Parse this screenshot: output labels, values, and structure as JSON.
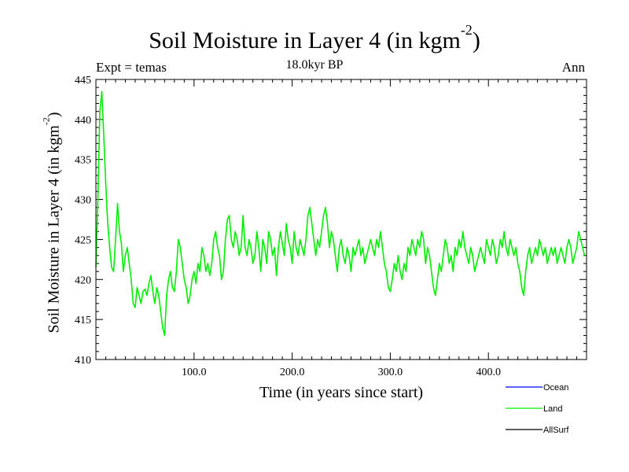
{
  "chart_data": {
    "type": "line",
    "title_main": "Soil Moisture in Layer 4 (in kgm",
    "title_sup": "-2",
    "title_close": ")",
    "subtitle": "18.0kyr BP",
    "left_label": "Expt = temas",
    "right_label": "Ann",
    "xlabel": "Time (in years since start)",
    "ylabel_main": "Soil Moisture in Layer 4 (in kgm",
    "ylabel_sup": "-2",
    "ylabel_close": ")",
    "xlim": [
      0,
      500
    ],
    "ylim": [
      410,
      445
    ],
    "x_ticks": [
      100,
      200,
      300,
      400
    ],
    "x_tick_labels": [
      "100.0",
      "200.0",
      "300.0",
      "400.0"
    ],
    "y_ticks": [
      410,
      415,
      420,
      425,
      430,
      435,
      440,
      445
    ],
    "y_tick_labels": [
      "410",
      "415",
      "420",
      "425",
      "430",
      "435",
      "440",
      "445"
    ],
    "legend": [
      {
        "name": "Ocean",
        "color": "#0000ff"
      },
      {
        "name": "Land",
        "color": "#00ee00"
      },
      {
        "name": "AllSurf",
        "color": "#000000"
      }
    ],
    "series": [
      {
        "name": "Land",
        "color": "#00ee00",
        "x": [
          0,
          2,
          4,
          6,
          8,
          10,
          12,
          14,
          16,
          18,
          20,
          22,
          24,
          26,
          28,
          30,
          32,
          34,
          36,
          38,
          40,
          42,
          44,
          46,
          48,
          50,
          52,
          54,
          56,
          58,
          60,
          62,
          64,
          66,
          68,
          70,
          72,
          74,
          76,
          78,
          80,
          82,
          84,
          86,
          88,
          90,
          92,
          94,
          96,
          98,
          100,
          102,
          104,
          106,
          108,
          110,
          112,
          114,
          116,
          118,
          120,
          122,
          124,
          126,
          128,
          130,
          132,
          134,
          136,
          138,
          140,
          142,
          144,
          146,
          148,
          150,
          152,
          154,
          156,
          158,
          160,
          162,
          164,
          166,
          168,
          170,
          172,
          174,
          176,
          178,
          180,
          182,
          184,
          186,
          188,
          190,
          192,
          194,
          196,
          198,
          200,
          202,
          204,
          206,
          208,
          210,
          212,
          214,
          216,
          218,
          220,
          222,
          224,
          226,
          228,
          230,
          232,
          234,
          236,
          238,
          240,
          242,
          244,
          246,
          248,
          250,
          252,
          254,
          256,
          258,
          260,
          262,
          264,
          266,
          268,
          270,
          272,
          274,
          276,
          278,
          280,
          282,
          284,
          286,
          288,
          290,
          292,
          294,
          296,
          298,
          300,
          302,
          304,
          306,
          308,
          310,
          312,
          314,
          316,
          318,
          320,
          322,
          324,
          326,
          328,
          330,
          332,
          334,
          336,
          338,
          340,
          342,
          344,
          346,
          348,
          350,
          352,
          354,
          356,
          358,
          360,
          362,
          364,
          366,
          368,
          370,
          372,
          374,
          376,
          378,
          380,
          382,
          384,
          386,
          388,
          390,
          392,
          394,
          396,
          398,
          400,
          402,
          404,
          406,
          408,
          410,
          412,
          414,
          416,
          418,
          420,
          422,
          424,
          426,
          428,
          430,
          432,
          434,
          436,
          438,
          440,
          442,
          444,
          446,
          448,
          450,
          452,
          454,
          456,
          458,
          460,
          462,
          464,
          466,
          468,
          470,
          472,
          474,
          476,
          478,
          480,
          482,
          484,
          486,
          488,
          490,
          492,
          494,
          496,
          498
        ],
        "y": [
          421.5,
          430,
          441,
          443.5,
          438,
          432,
          427,
          424,
          421.5,
          421,
          425,
          429.5,
          426,
          424.5,
          421,
          423,
          424,
          422,
          420,
          417,
          416.5,
          419,
          418,
          417,
          418.5,
          418.8,
          418,
          419.5,
          420.5,
          418.5,
          417,
          419,
          418,
          416,
          414,
          413,
          418,
          420,
          421,
          419,
          418.5,
          421,
          425,
          424,
          422,
          420,
          419,
          417,
          418,
          420,
          421,
          419.5,
          422,
          421,
          424,
          423,
          421,
          422,
          420.5,
          422,
          425,
          426,
          424,
          423,
          420,
          421,
          425,
          427.5,
          428,
          425,
          424,
          426,
          425,
          423,
          424,
          428,
          424,
          423,
          425,
          424,
          422,
          423,
          426,
          424,
          421,
          425,
          424,
          422,
          426,
          425,
          423,
          424,
          420.5,
          424,
          426,
          424.5,
          423,
          427,
          425,
          424,
          422,
          426,
          424,
          423,
          425,
          424,
          423,
          425,
          428,
          429,
          427,
          425,
          423,
          425,
          424,
          426,
          428,
          429,
          427,
          424,
          426,
          425,
          423,
          421,
          424,
          425,
          423,
          422,
          424,
          423,
          421,
          424,
          423,
          424,
          425,
          423,
          424,
          422,
          423,
          424,
          425,
          424,
          423,
          425,
          424,
          426,
          424,
          422,
          421,
          419,
          418.5,
          420,
          422,
          421,
          423,
          421,
          420,
          422,
          421,
          424,
          423,
          425,
          424,
          423,
          425,
          424,
          426,
          425,
          422,
          424,
          423,
          421,
          419,
          418,
          420,
          422,
          421,
          423,
          425,
          424,
          422,
          423,
          421,
          424,
          423,
          425,
          424,
          426,
          424,
          423,
          422,
          424,
          423,
          421,
          422,
          423,
          424,
          423,
          422,
          425,
          424,
          423,
          425,
          424,
          422,
          423,
          425,
          424,
          426,
          424,
          423,
          425,
          424,
          423,
          424,
          422,
          421,
          419,
          418,
          421,
          423,
          424,
          422,
          423,
          424,
          423,
          425,
          424,
          423,
          424,
          422,
          423,
          424,
          423,
          424,
          422,
          423,
          424,
          423,
          422,
          424,
          425,
          424,
          422,
          423,
          424,
          426,
          425,
          424,
          423
        ]
      }
    ]
  }
}
